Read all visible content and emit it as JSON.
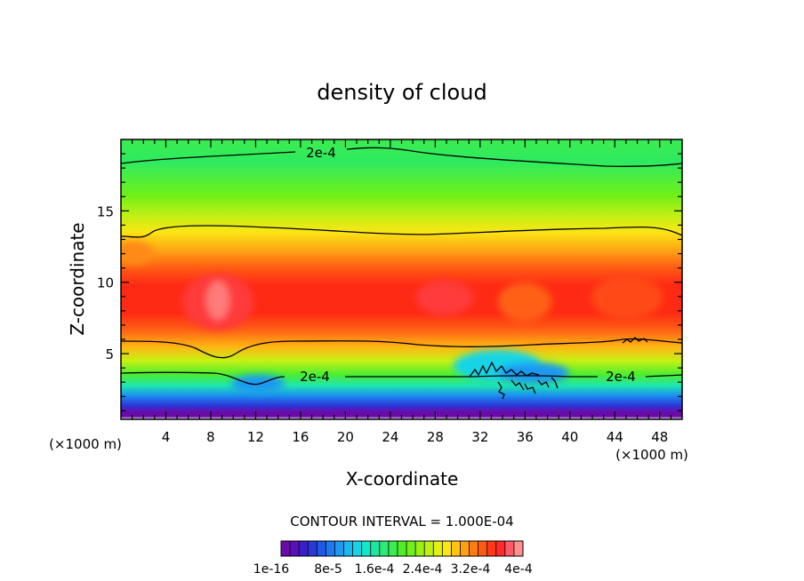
{
  "chart_data": {
    "type": "heatmap",
    "title": "density of cloud",
    "xlabel": "X-coordinate",
    "ylabel": "Z-coordinate",
    "x_unit_left": "(×1000 m)",
    "x_unit_right": "(×1000 m)",
    "xlim": [
      0,
      50
    ],
    "ylim": [
      0.4,
      20
    ],
    "x_ticks": [
      4,
      8,
      12,
      16,
      20,
      24,
      28,
      32,
      36,
      40,
      44,
      48
    ],
    "y_ticks": [
      5,
      10,
      15
    ],
    "contour_interval_text": "CONTOUR INTERVAL = 1.000E-04",
    "contour_line_labels": [
      "2e-4",
      "2e-4",
      "2e-4"
    ],
    "colorbar": {
      "min": 1e-16,
      "max": 0.0004,
      "levels": 27,
      "colors": [
        "#6a0aa8",
        "#5a10b8",
        "#3a1ec8",
        "#2a38d8",
        "#1e58e6",
        "#1e78f0",
        "#1e98f2",
        "#1ab8f0",
        "#14d4e6",
        "#14e6c8",
        "#1ee6a0",
        "#2eea78",
        "#3cec50",
        "#50ee28",
        "#70f018",
        "#98f014",
        "#bef014",
        "#e2f014",
        "#fae614",
        "#ffc414",
        "#ffa014",
        "#ff7c14",
        "#ff5a14",
        "#ff3a14",
        "#ff2a2a",
        "#ff5a6a",
        "#ff9090"
      ],
      "tick_labels": [
        "1e-16",
        "8e-5",
        "1.6e-4",
        "2.4e-4",
        "3.2e-4",
        "4e-4"
      ]
    }
  }
}
